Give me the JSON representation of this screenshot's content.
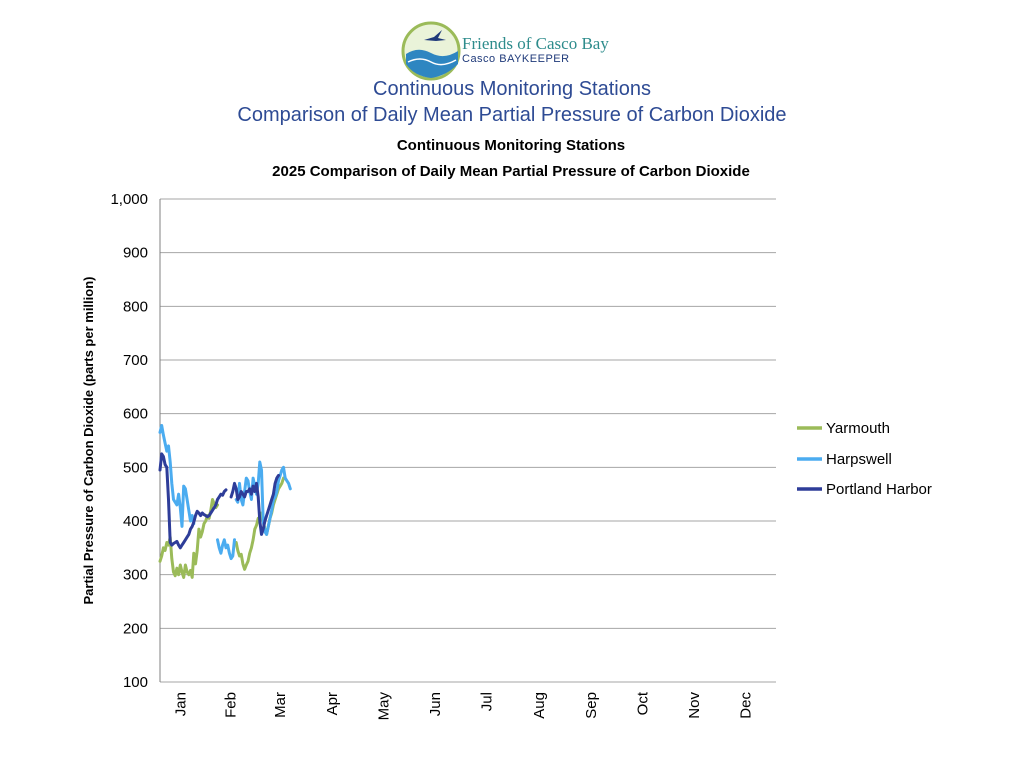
{
  "logo": {
    "org_name": "Friends of Casco Bay",
    "sub_name": "Casco BAYKEEPER"
  },
  "header": {
    "title_line1": "Continuous Monitoring Stations",
    "title_line2": "Comparison of Daily Mean Partial Pressure of Carbon Dioxide"
  },
  "colors": {
    "yarmouth": "#9bbb59",
    "harpswell": "#4bacf0",
    "portland": "#2e3d99",
    "grid": "#a6a6a6",
    "header_text": "#2e4b94"
  },
  "chart_data": {
    "type": "line",
    "title": [
      "Continuous Monitoring Stations",
      "2025 Comparison of Daily Mean Partial Pressure of Carbon Dioxide"
    ],
    "ylabel": "Partial Pressure of Carbon Dioxide (parts per million)",
    "xlabel": "",
    "ylim": [
      100,
      1000
    ],
    "yticks": [
      100,
      200,
      300,
      400,
      500,
      600,
      700,
      800,
      900,
      1000
    ],
    "ytick_labels": [
      "100",
      "200",
      "300",
      "400",
      "500",
      "600",
      "700",
      "800",
      "900",
      "1,000"
    ],
    "months": [
      "Jan",
      "Feb",
      "Mar",
      "Apr",
      "May",
      "Jun",
      "Jul",
      "Aug",
      "Sep",
      "Oct",
      "Nov",
      "Dec"
    ],
    "grid": true,
    "legend_position": "right",
    "x_unit": "day of year",
    "series": [
      {
        "name": "Yarmouth",
        "color": "#9bbb59",
        "segments": [
          [
            [
              1,
              325
            ],
            [
              2,
              335
            ],
            [
              3,
              350
            ],
            [
              4,
              345
            ],
            [
              5,
              360
            ],
            [
              6,
              355
            ],
            [
              7,
              370
            ],
            [
              8,
              330
            ],
            [
              9,
              305
            ],
            [
              10,
              298
            ],
            [
              11,
              312
            ],
            [
              12,
              300
            ],
            [
              13,
              318
            ],
            [
              14,
              305
            ],
            [
              15,
              295
            ],
            [
              16,
              318
            ],
            [
              17,
              305
            ],
            [
              18,
              300
            ],
            [
              19,
              308
            ],
            [
              20,
              295
            ],
            [
              21,
              340
            ],
            [
              22,
              320
            ],
            [
              23,
              345
            ],
            [
              24,
              385
            ],
            [
              25,
              370
            ],
            [
              26,
              380
            ],
            [
              27,
              395
            ],
            [
              28,
              400
            ],
            [
              29,
              410
            ],
            [
              30,
              405
            ],
            [
              31,
              420
            ],
            [
              32,
              440
            ],
            [
              33,
              432
            ],
            [
              34,
              425
            ],
            [
              35,
              430
            ]
          ],
          [
            [
              46,
              360
            ],
            [
              47,
              345
            ],
            [
              48,
              335
            ],
            [
              49,
              338
            ],
            [
              50,
              320
            ],
            [
              51,
              310
            ],
            [
              52,
              318
            ],
            [
              53,
              325
            ],
            [
              54,
              340
            ],
            [
              55,
              350
            ],
            [
              56,
              365
            ],
            [
              57,
              385
            ],
            [
              58,
              392
            ],
            [
              59,
              405
            ],
            [
              60,
              398
            ],
            [
              61,
              415
            ],
            [
              62,
              400
            ],
            [
              63,
              385
            ],
            [
              64,
              375
            ],
            [
              65,
              390
            ],
            [
              66,
              405
            ],
            [
              67,
              415
            ],
            [
              68,
              430
            ],
            [
              69,
              440
            ],
            [
              70,
              450
            ],
            [
              71,
              460
            ],
            [
              72,
              465
            ],
            [
              73,
              470
            ],
            [
              74,
              480
            ]
          ]
        ]
      },
      {
        "name": "Harpswell",
        "color": "#4bacf0",
        "segments": [
          [
            [
              1,
              565
            ],
            [
              2,
              578
            ],
            [
              3,
              560
            ],
            [
              4,
              545
            ],
            [
              5,
              530
            ],
            [
              6,
              540
            ],
            [
              7,
              510
            ],
            [
              8,
              470
            ],
            [
              9,
              440
            ],
            [
              10,
              435
            ],
            [
              11,
              430
            ],
            [
              12,
              450
            ],
            [
              13,
              425
            ],
            [
              14,
              390
            ],
            [
              15,
              465
            ],
            [
              16,
              460
            ],
            [
              17,
              440
            ],
            [
              18,
              420
            ],
            [
              19,
              400
            ],
            [
              20,
              410
            ],
            [
              21,
              395
            ]
          ],
          [
            [
              35,
              365
            ],
            [
              36,
              350
            ],
            [
              37,
              340
            ],
            [
              38,
              355
            ],
            [
              39,
              365
            ],
            [
              40,
              350
            ],
            [
              41,
              355
            ],
            [
              42,
              340
            ],
            [
              43,
              330
            ],
            [
              44,
              335
            ],
            [
              45,
              365
            ]
          ],
          [
            [
              46,
              440
            ],
            [
              47,
              435
            ],
            [
              48,
              470
            ],
            [
              49,
              440
            ],
            [
              50,
              430
            ],
            [
              51,
              455
            ],
            [
              52,
              480
            ],
            [
              53,
              475
            ],
            [
              54,
              455
            ],
            [
              55,
              440
            ],
            [
              56,
              480
            ],
            [
              57,
              465
            ],
            [
              58,
              450
            ],
            [
              59,
              470
            ],
            [
              60,
              510
            ],
            [
              61,
              495
            ],
            [
              62,
              400
            ],
            [
              63,
              380
            ],
            [
              64,
              375
            ],
            [
              65,
              390
            ],
            [
              66,
              405
            ],
            [
              67,
              420
            ],
            [
              68,
              440
            ],
            [
              69,
              445
            ],
            [
              70,
              455
            ],
            [
              71,
              475
            ],
            [
              72,
              485
            ],
            [
              73,
              495
            ],
            [
              74,
              500
            ],
            [
              75,
              480
            ],
            [
              76,
              475
            ],
            [
              77,
              470
            ],
            [
              78,
              460
            ]
          ]
        ]
      },
      {
        "name": "Portland Harbor",
        "color": "#2e3d99",
        "segments": [
          [
            [
              1,
              495
            ],
            [
              2,
              525
            ],
            [
              3,
              520
            ],
            [
              4,
              505
            ],
            [
              5,
              500
            ],
            [
              6,
              440
            ],
            [
              7,
              360
            ],
            [
              8,
              355
            ],
            [
              9,
              358
            ],
            [
              10,
              360
            ],
            [
              11,
              362
            ],
            [
              12,
              355
            ],
            [
              13,
              350
            ],
            [
              14,
              355
            ],
            [
              15,
              360
            ],
            [
              16,
              365
            ],
            [
              17,
              370
            ],
            [
              18,
              375
            ],
            [
              19,
              385
            ],
            [
              20,
              390
            ],
            [
              21,
              398
            ],
            [
              22,
              410
            ],
            [
              23,
              418
            ],
            [
              24,
              415
            ],
            [
              25,
              410
            ],
            [
              26,
              415
            ],
            [
              27,
              412
            ],
            [
              28,
              410
            ],
            [
              29,
              408
            ],
            [
              30,
              410
            ],
            [
              31,
              415
            ],
            [
              32,
              420
            ],
            [
              33,
              425
            ],
            [
              34,
              430
            ],
            [
              35,
              440
            ],
            [
              36,
              445
            ],
            [
              37,
              450
            ],
            [
              38,
              448
            ],
            [
              39,
              455
            ],
            [
              40,
              458
            ]
          ],
          [
            [
              43,
              445
            ],
            [
              44,
              455
            ],
            [
              45,
              470
            ],
            [
              46,
              460
            ],
            [
              47,
              440
            ],
            [
              48,
              445
            ],
            [
              49,
              455
            ],
            [
              50,
              450
            ],
            [
              51,
              445
            ],
            [
              52,
              455
            ],
            [
              53,
              455
            ],
            [
              54,
              460
            ],
            [
              55,
              450
            ],
            [
              56,
              465
            ],
            [
              57,
              455
            ],
            [
              58,
              470
            ],
            [
              59,
              445
            ],
            [
              60,
              400
            ],
            [
              61,
              375
            ],
            [
              62,
              385
            ],
            [
              63,
              400
            ],
            [
              64,
              410
            ],
            [
              65,
              420
            ],
            [
              66,
              430
            ],
            [
              67,
              440
            ],
            [
              68,
              450
            ],
            [
              69,
              470
            ],
            [
              70,
              480
            ],
            [
              71,
              485
            ]
          ]
        ]
      }
    ]
  }
}
